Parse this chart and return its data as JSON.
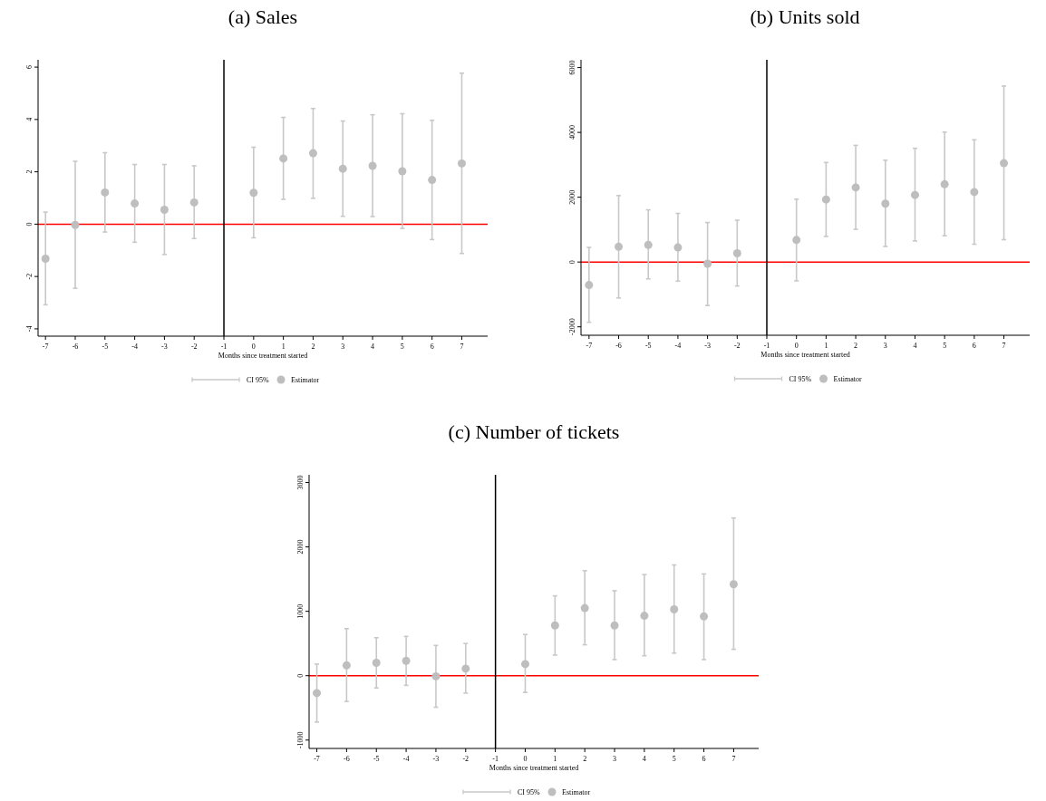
{
  "chart_data": [
    {
      "type": "scatter",
      "title": "(a) Sales",
      "xlabel": "Months since treatment started",
      "annotations": [
        "CI 95%"
      ],
      "x": [
        -7,
        -6,
        -5,
        -4,
        -3,
        -2,
        0,
        1,
        2,
        3,
        4,
        5,
        6,
        7
      ],
      "series": [
        {
          "name": "Estimator",
          "color": "#bebebe",
          "values": [
            -1.32,
            -0.03,
            1.21,
            0.79,
            0.55,
            0.83,
            1.2,
            2.51,
            2.71,
            2.12,
            2.23,
            2.02,
            1.69,
            2.32
          ],
          "errors": [
            [
              -3.08,
              0.46
            ],
            [
              -2.45,
              2.4
            ],
            [
              -0.3,
              2.73
            ],
            [
              -0.69,
              2.28
            ],
            [
              -1.16,
              2.28
            ],
            [
              -0.55,
              2.23
            ],
            [
              -0.52,
              2.94
            ],
            [
              0.95,
              4.08
            ],
            [
              0.99,
              4.42
            ],
            [
              0.3,
              3.94
            ],
            [
              0.29,
              4.18
            ],
            [
              -0.16,
              4.22
            ],
            [
              -0.59,
              3.97
            ],
            [
              -1.12,
              5.77
            ]
          ]
        }
      ],
      "xlim": [
        -7.25,
        7.87
      ],
      "xticks": [
        -7,
        -6,
        -5,
        -4,
        -3,
        -2,
        -1,
        0,
        1,
        2,
        3,
        4,
        5,
        6,
        7
      ],
      "ylim": [
        -4.28,
        6.28
      ],
      "yticks": [
        -4,
        -2,
        0,
        2,
        4,
        6
      ],
      "ref_lines": [
        {
          "axis": "y",
          "value": 0,
          "color": "#ff0000"
        },
        {
          "axis": "x",
          "value": -1,
          "color": "#000000"
        }
      ],
      "marker": "circle",
      "legend": "bottom",
      "grid": false
    },
    {
      "type": "scatter",
      "title": "(b) Units sold",
      "xlabel": "Months since treatment started",
      "annotations": [
        "CI 95%"
      ],
      "x": [
        -7,
        -6,
        -5,
        -4,
        -3,
        -2,
        0,
        1,
        2,
        3,
        4,
        5,
        6,
        7
      ],
      "series": [
        {
          "name": "Estimator",
          "color": "#bebebe",
          "values": [
            -710,
            470,
            530,
            450,
            -50,
            270,
            680,
            1930,
            2300,
            1800,
            2070,
            2400,
            2160,
            3050
          ],
          "errors": [
            [
              -1860,
              450
            ],
            [
              -1110,
              2050
            ],
            [
              -520,
              1610
            ],
            [
              -590,
              1500
            ],
            [
              -1340,
              1220
            ],
            [
              -740,
              1290
            ],
            [
              -580,
              1940
            ],
            [
              790,
              3070
            ],
            [
              1010,
              3600
            ],
            [
              480,
              3140
            ],
            [
              650,
              3510
            ],
            [
              810,
              4010
            ],
            [
              550,
              3770
            ],
            [
              690,
              5430
            ]
          ]
        }
      ],
      "xlim": [
        -7.27,
        7.87
      ],
      "xticks": [
        -7,
        -6,
        -5,
        -4,
        -3,
        -2,
        -1,
        0,
        1,
        2,
        3,
        4,
        5,
        6,
        7
      ],
      "ylim": [
        -2260,
        6240
      ],
      "yticks": [
        -2000,
        0,
        2000,
        4000,
        6000
      ],
      "ref_lines": [
        {
          "axis": "y",
          "value": 0,
          "color": "#ff0000"
        },
        {
          "axis": "x",
          "value": -1,
          "color": "#000000"
        }
      ],
      "marker": "circle",
      "legend": "bottom",
      "grid": false
    },
    {
      "type": "scatter",
      "title": "(c) Number of tickets",
      "xlabel": "Months since treatment started",
      "annotations": [
        "CI 95%"
      ],
      "x": [
        -7,
        -6,
        -5,
        -4,
        -3,
        -2,
        0,
        1,
        2,
        3,
        4,
        5,
        6,
        7
      ],
      "series": [
        {
          "name": "Estimator",
          "color": "#bebebe",
          "values": [
            -270,
            160,
            200,
            230,
            -10,
            110,
            180,
            780,
            1050,
            780,
            930,
            1030,
            920,
            1420
          ],
          "errors": [
            [
              -720,
              180
            ],
            [
              -400,
              730
            ],
            [
              -190,
              590
            ],
            [
              -150,
              610
            ],
            [
              -490,
              470
            ],
            [
              -270,
              500
            ],
            [
              -260,
              640
            ],
            [
              320,
              1240
            ],
            [
              480,
              1630
            ],
            [
              250,
              1320
            ],
            [
              310,
              1570
            ],
            [
              350,
              1720
            ],
            [
              250,
              1580
            ],
            [
              410,
              2450
            ]
          ]
        }
      ],
      "xlim": [
        -7.26,
        7.84
      ],
      "xticks": [
        -7,
        -6,
        -5,
        -4,
        -3,
        -2,
        -1,
        0,
        1,
        2,
        3,
        4,
        5,
        6,
        7
      ],
      "ylim": [
        -1130,
        3120
      ],
      "yticks": [
        -1000,
        0,
        1000,
        2000,
        3000
      ],
      "ref_lines": [
        {
          "axis": "y",
          "value": 0,
          "color": "#ff0000"
        },
        {
          "axis": "x",
          "value": -1,
          "color": "#000000"
        }
      ],
      "marker": "circle",
      "legend": "bottom",
      "grid": false
    }
  ]
}
